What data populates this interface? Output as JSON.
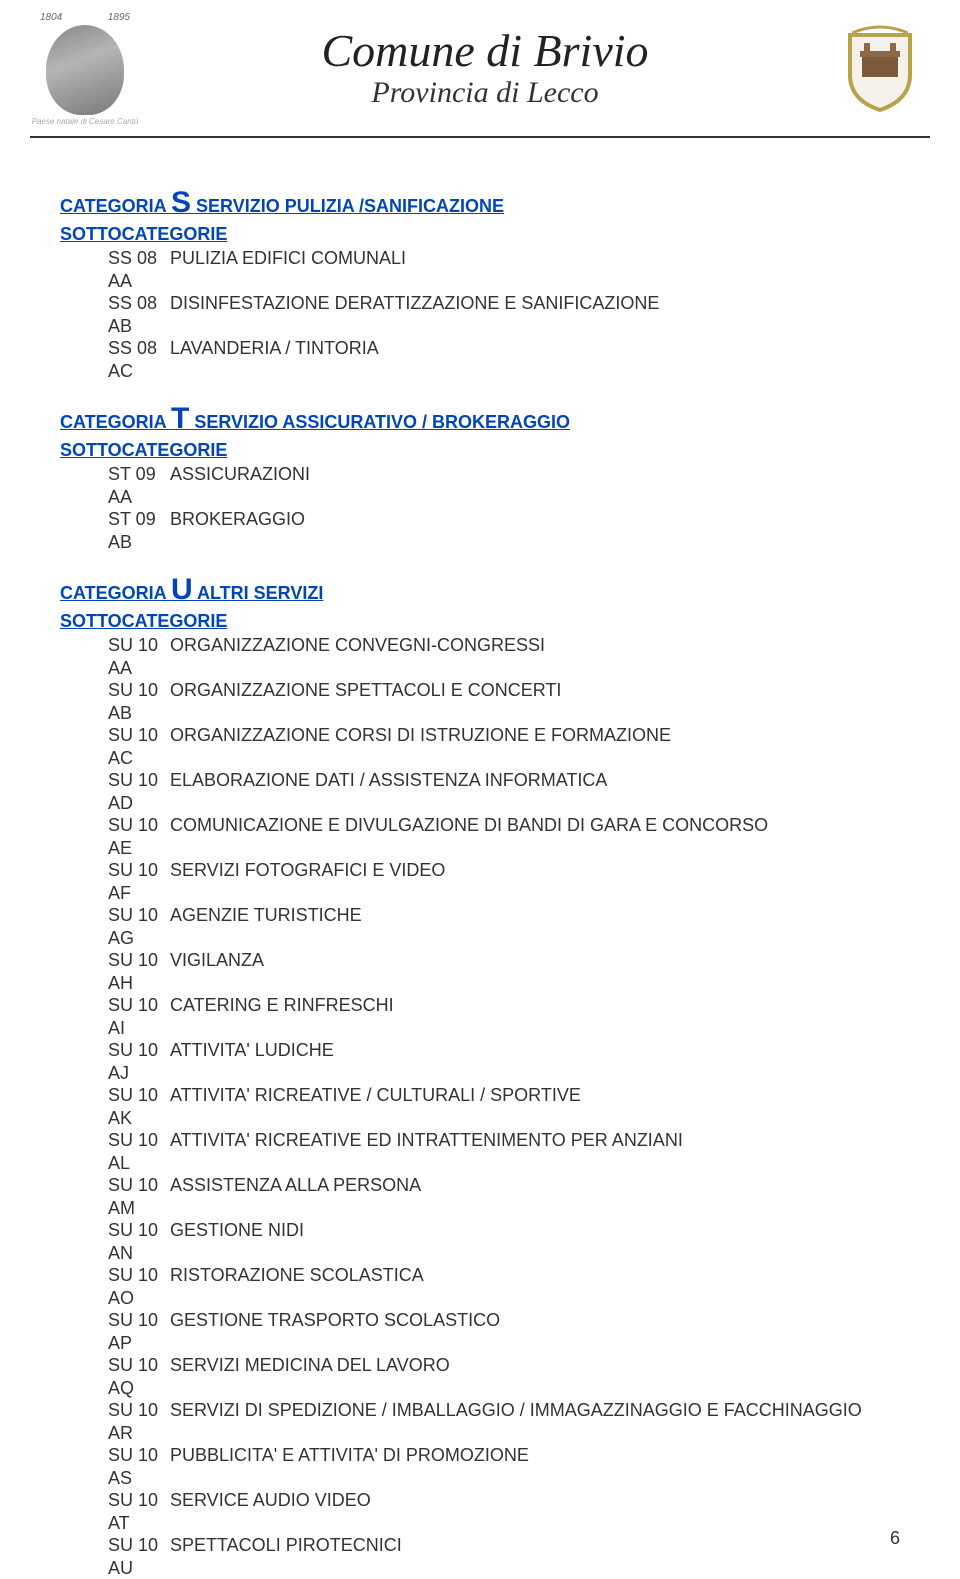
{
  "header": {
    "year_left": "1804",
    "year_right": "1895",
    "portrait_caption": "Paese natale di Cesare Cantù",
    "title_main": "Comune di Brivio",
    "title_sub": "Provincia di Lecco"
  },
  "sections": [
    {
      "cat_letter": "S",
      "cat_prefix": "CATEGORIA ",
      "cat_rest": " SERVIZIO PULIZIA /SANIFICAZIONE",
      "sub_label": "SOTTOCATEGORIE",
      "items": [
        {
          "code": "SS 08 AA",
          "desc": "PULIZIA EDIFICI COMUNALI"
        },
        {
          "code": "SS 08 AB",
          "desc": "DISINFESTAZIONE DERATTIZZAZIONE E SANIFICAZIONE"
        },
        {
          "code": "SS 08 AC",
          "desc": "LAVANDERIA / TINTORIA"
        }
      ]
    },
    {
      "cat_letter": "T",
      "cat_prefix": "CATEGORIA ",
      "cat_rest": " SERVIZIO ASSICURATIVO / BROKERAGGIO",
      "sub_label": "SOTTOCATEGORIE",
      "items": [
        {
          "code": "ST 09 AA",
          "desc": "ASSICURAZIONI"
        },
        {
          "code": "ST 09 AB",
          "desc": "BROKERAGGIO"
        }
      ]
    },
    {
      "cat_letter": "U",
      "cat_prefix": "CATEGORIA ",
      "cat_rest": " ALTRI SERVIZI",
      "sub_label": "SOTTOCATEGORIE",
      "items": [
        {
          "code": "SU 10 AA",
          "desc": "ORGANIZZAZIONE CONVEGNI-CONGRESSI"
        },
        {
          "code": "SU 10 AB",
          "desc": "ORGANIZZAZIONE SPETTACOLI E CONCERTI"
        },
        {
          "code": "SU 10 AC",
          "desc": "ORGANIZZAZIONE CORSI DI ISTRUZIONE E FORMAZIONE"
        },
        {
          "code": "SU 10 AD",
          "desc": "ELABORAZIONE DATI / ASSISTENZA INFORMATICA"
        },
        {
          "code": "SU 10 AE",
          "desc": "COMUNICAZIONE E DIVULGAZIONE DI BANDI DI GARA E CONCORSO"
        },
        {
          "code": "SU 10 AF",
          "desc": "SERVIZI FOTOGRAFICI E VIDEO"
        },
        {
          "code": "SU 10 AG",
          "desc": "AGENZIE TURISTICHE"
        },
        {
          "code": "SU 10 AH",
          "desc": "VIGILANZA"
        },
        {
          "code": "SU 10 AI",
          "desc": "CATERING E RINFRESCHI"
        },
        {
          "code": "SU 10 AJ",
          "desc": "ATTIVITA' LUDICHE"
        },
        {
          "code": "SU 10 AK",
          "desc": "ATTIVITA' RICREATIVE / CULTURALI / SPORTIVE"
        },
        {
          "code": "SU 10 AL",
          "desc": "ATTIVITA' RICREATIVE ED INTRATTENIMENTO PER ANZIANI"
        },
        {
          "code": "SU 10 AM",
          "desc": "ASSISTENZA ALLA PERSONA"
        },
        {
          "code": "SU 10 AN",
          "desc": "GESTIONE NIDI"
        },
        {
          "code": "SU 10 AO",
          "desc": "RISTORAZIONE SCOLASTICA"
        },
        {
          "code": "SU 10 AP",
          "desc": "GESTIONE TRASPORTO SCOLASTICO"
        },
        {
          "code": "SU 10 AQ",
          "desc": "SERVIZI MEDICINA DEL LAVORO"
        },
        {
          "code": "SU 10 AR",
          "desc": "SERVIZI DI SPEDIZIONE / IMBALLAGGIO / IMMAGAZZINAGGIO E FACCHINAGGIO",
          "justify": true
        },
        {
          "code": "SU 10 AS",
          "desc": "PUBBLICITA' E ATTIVITA' DI PROMOZIONE"
        },
        {
          "code": "SU 10 AT",
          "desc": "SERVICE AUDIO VIDEO"
        },
        {
          "code": "SU 10 AU",
          "desc": "SPETTACOLI PIROTECNICI"
        }
      ]
    }
  ],
  "page_number": "6",
  "colors": {
    "link_blue": "#0046b8",
    "text": "#333333",
    "divider": "#333333",
    "background": "#ffffff"
  },
  "typography": {
    "body_fontsize_pt": 14,
    "cat_big_letter_pt": 22,
    "title_main_pt": 34,
    "title_sub_pt": 22
  }
}
